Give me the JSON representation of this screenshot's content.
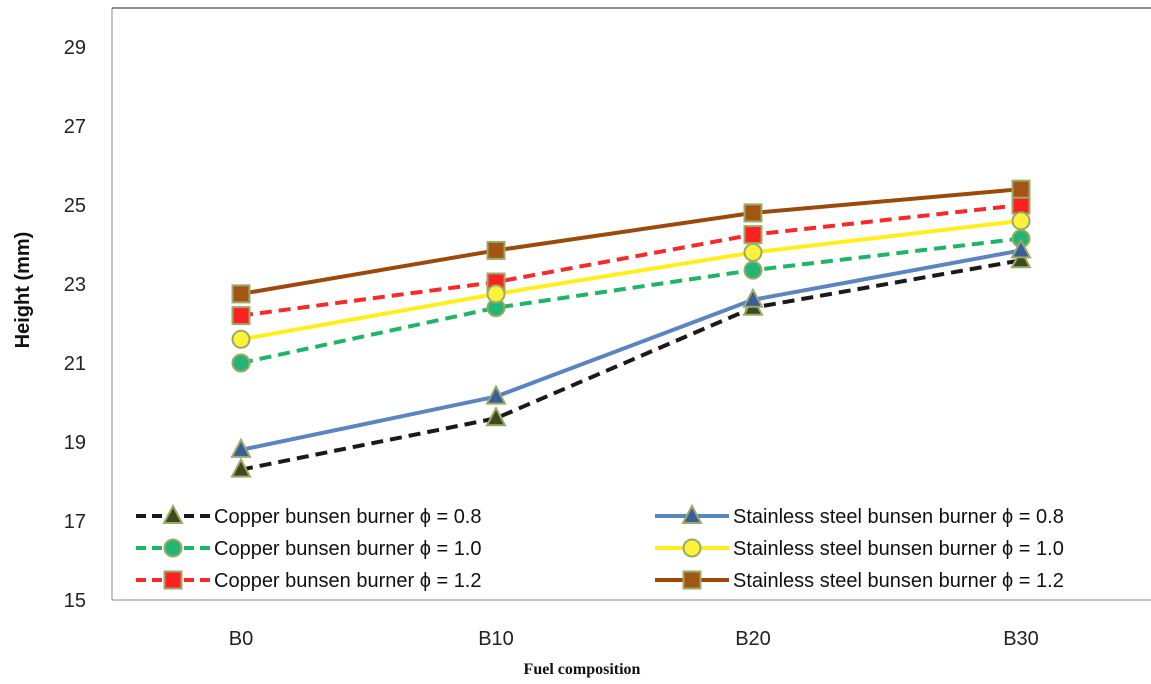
{
  "chart_data": {
    "type": "line",
    "xlabel": "Fuel composition",
    "ylabel": "Height (mm)",
    "categories": [
      "B0",
      "B10",
      "B20",
      "B30"
    ],
    "ylim": [
      15,
      30
    ],
    "yticks": [
      15,
      17,
      19,
      21,
      23,
      25,
      27,
      29
    ],
    "grid": false,
    "legend_position": "bottom",
    "series": [
      {
        "name": "Copper bunsen burner ϕ = 0.8",
        "values": [
          18.3,
          19.6,
          22.4,
          23.6
        ],
        "color": "#1a1a1a",
        "dash": true,
        "marker": "triangle",
        "marker_fill": "#3d4a1e"
      },
      {
        "name": "Copper bunsen burner ϕ  = 1.0",
        "values": [
          21.0,
          22.4,
          23.35,
          24.15
        ],
        "color": "#1fb569",
        "dash": true,
        "marker": "circle",
        "marker_fill": "#22b573"
      },
      {
        "name": "Copper bunsen burner ϕ  = 1.2",
        "values": [
          22.2,
          23.05,
          24.25,
          25.0
        ],
        "color": "#f52a2a",
        "dash": true,
        "marker": "square",
        "marker_fill": "#ff2020"
      },
      {
        "name": "Stainless steel bunsen burner ϕ = 0.8",
        "values": [
          18.8,
          20.15,
          22.6,
          23.85
        ],
        "color": "#5b85bf",
        "dash": false,
        "marker": "triangle",
        "marker_fill": "#3a5e9a"
      },
      {
        "name": "Stainless steel bunsen burner ϕ  = 1.0",
        "values": [
          21.6,
          22.75,
          23.8,
          24.6
        ],
        "color": "#ffef1a",
        "dash": false,
        "marker": "circle",
        "marker_fill": "#fff23a"
      },
      {
        "name": "Stainless steel bunsen burner ϕ  = 1.2",
        "values": [
          22.75,
          23.85,
          24.8,
          25.4
        ],
        "color": "#9b4a0c",
        "dash": false,
        "marker": "square",
        "marker_fill": "#a35614"
      }
    ]
  }
}
